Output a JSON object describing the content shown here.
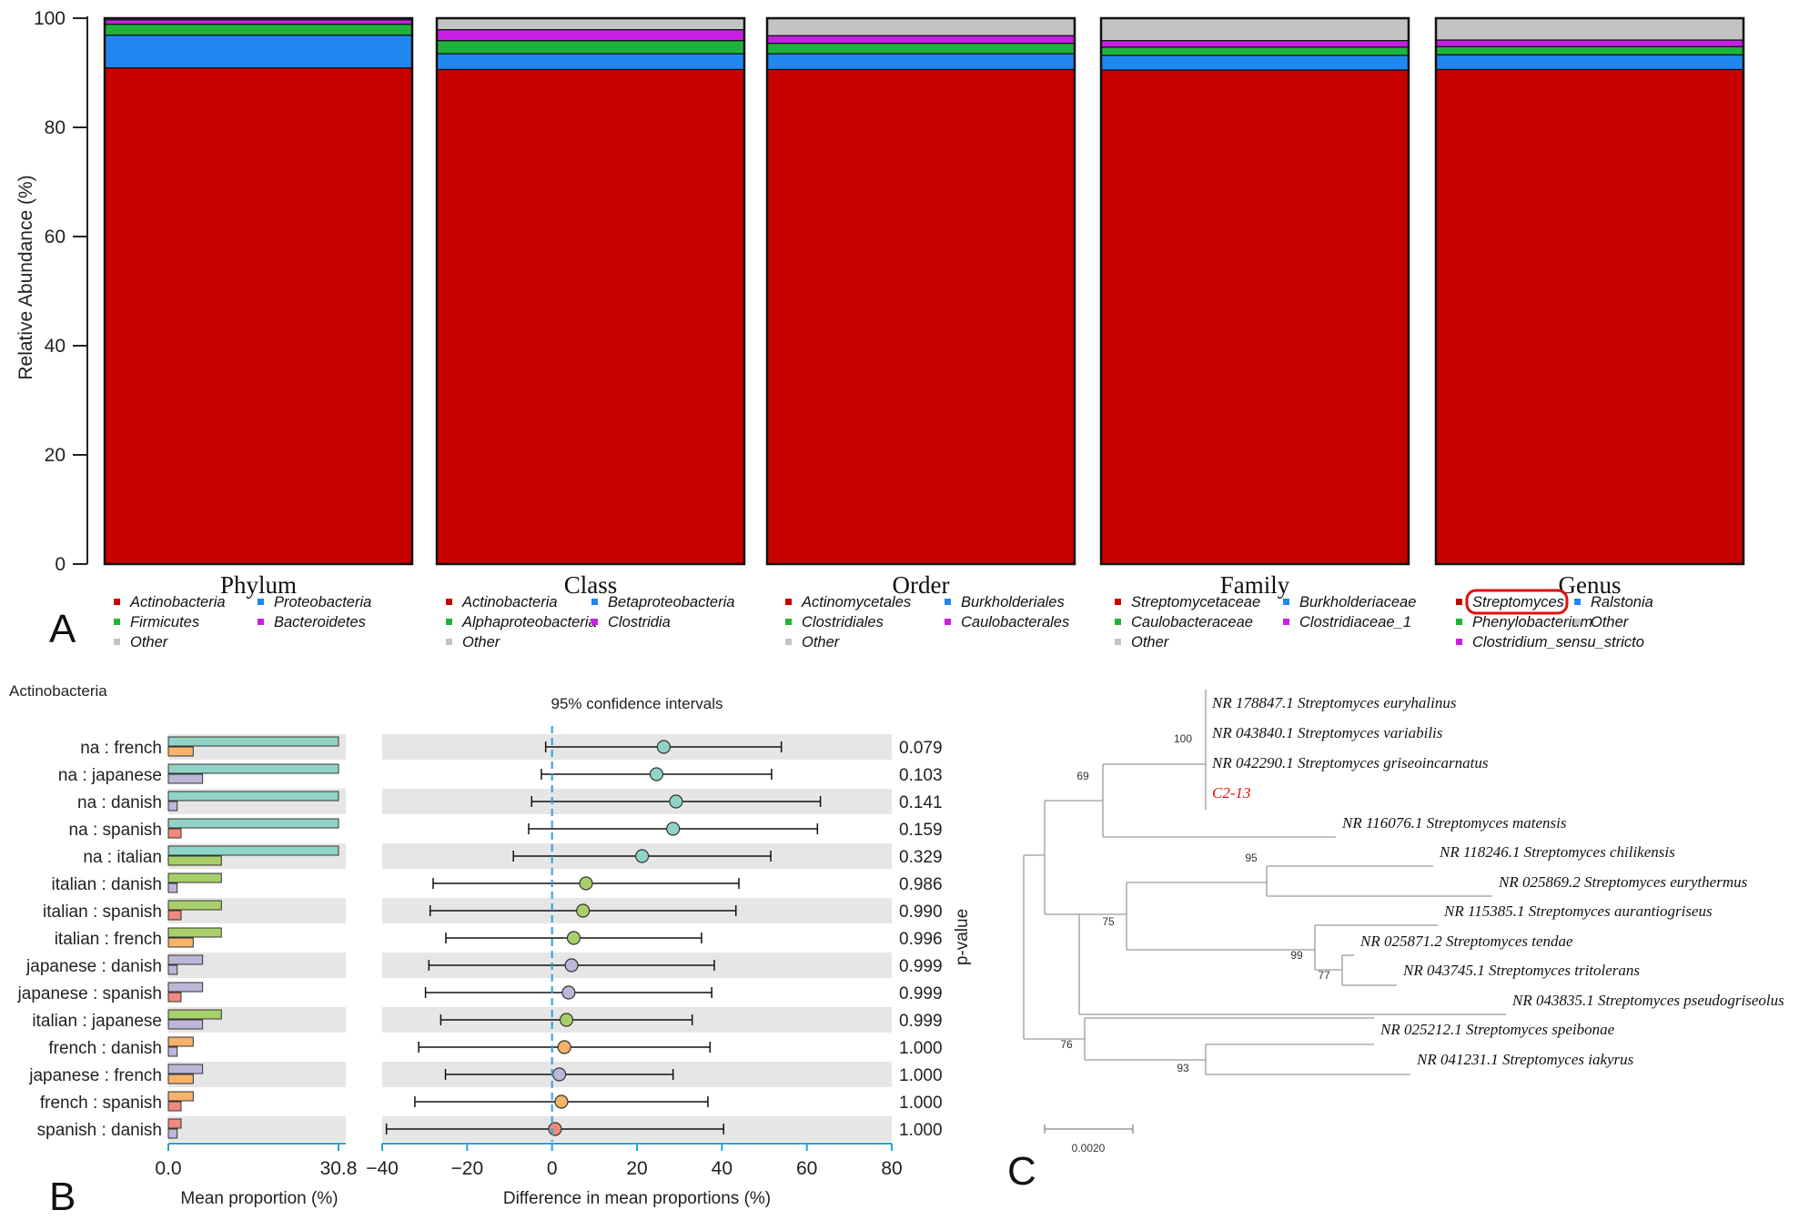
{
  "colors": {
    "red": "#c80000",
    "blue": "#1e88f0",
    "green": "#1eb43c",
    "magenta": "#c81ee6",
    "gray": "#c3c3c3",
    "teal": "#8fd4c6",
    "lime": "#a8d06a",
    "lavender": "#bcb6d8",
    "orange": "#f6b26b",
    "salmon": "#f08a7e",
    "zero_line": "#2aa0d8",
    "axis_blue": "#2aa0d8",
    "highlight": "#e01010"
  },
  "chart_data": [
    {
      "type": "bar",
      "panel": "A",
      "ylabel": "Relative Abundance (%)",
      "ylim": [
        0,
        100
      ],
      "yticks": [
        "0",
        "20",
        "40",
        "60",
        "80",
        "100"
      ],
      "categories": [
        "Phylum",
        "Class",
        "Order",
        "Family",
        "Genus"
      ],
      "stacked": true,
      "bars": [
        {
          "name": "Phylum",
          "segments": [
            {
              "label": "Actinobacteria",
              "value": 90.9,
              "color": "red"
            },
            {
              "label": "Proteobacteria",
              "value": 6.0,
              "color": "blue"
            },
            {
              "label": "Firmicutes",
              "value": 2.0,
              "color": "green"
            },
            {
              "label": "Bacteroidetes",
              "value": 0.8,
              "color": "magenta"
            },
            {
              "label": "Other",
              "value": 0.3,
              "color": "gray"
            }
          ]
        },
        {
          "name": "Class",
          "segments": [
            {
              "label": "Actinobacteria",
              "value": 90.6,
              "color": "red"
            },
            {
              "label": "Betaproteobacteria",
              "value": 2.9,
              "color": "blue"
            },
            {
              "label": "Alphaproteobacteria",
              "value": 2.4,
              "color": "green"
            },
            {
              "label": "Clostridia",
              "value": 2.0,
              "color": "magenta"
            },
            {
              "label": "Other",
              "value": 2.1,
              "color": "gray"
            }
          ]
        },
        {
          "name": "Order",
          "segments": [
            {
              "label": "Actinomycetales",
              "value": 90.6,
              "color": "red"
            },
            {
              "label": "Burkholderiales",
              "value": 2.9,
              "color": "blue"
            },
            {
              "label": "Clostridiales",
              "value": 1.9,
              "color": "green"
            },
            {
              "label": "Caulobacterales",
              "value": 1.4,
              "color": "magenta"
            },
            {
              "label": "Other",
              "value": 3.2,
              "color": "gray"
            }
          ]
        },
        {
          "name": "Family",
          "segments": [
            {
              "label": "Streptomycetaceae",
              "value": 90.5,
              "color": "red"
            },
            {
              "label": "Burkholderiaceae",
              "value": 2.7,
              "color": "blue"
            },
            {
              "label": "Caulobacteraceae",
              "value": 1.5,
              "color": "green"
            },
            {
              "label": "Clostridiaceae_1",
              "value": 1.2,
              "color": "magenta"
            },
            {
              "label": "Other",
              "value": 4.1,
              "color": "gray"
            }
          ]
        },
        {
          "name": "Genus",
          "segments": [
            {
              "label": "Streptomyces",
              "value": 90.6,
              "color": "red"
            },
            {
              "label": "Ralstonia",
              "value": 2.7,
              "color": "blue"
            },
            {
              "label": "Phenylobacterium",
              "value": 1.5,
              "color": "green"
            },
            {
              "label": "Clostridium_sensu_stricto",
              "value": 1.2,
              "color": "magenta"
            },
            {
              "label": "Other",
              "value": 4.0,
              "color": "gray"
            }
          ]
        }
      ],
      "legends": [
        {
          "rank": "Phylum",
          "columns": [
            [
              "Actinobacteria",
              "Firmicutes",
              "Other"
            ],
            [
              "Proteobacteria",
              "Bacteroidetes"
            ]
          ],
          "colors": [
            [
              "red",
              "green",
              "gray"
            ],
            [
              "blue",
              "magenta"
            ]
          ]
        },
        {
          "rank": "Class",
          "columns": [
            [
              "Actinobacteria",
              "Alphaproteobacteria",
              "Other"
            ],
            [
              "Betaproteobacteria",
              "Clostridia"
            ]
          ],
          "colors": [
            [
              "red",
              "green",
              "gray"
            ],
            [
              "blue",
              "magenta"
            ]
          ]
        },
        {
          "rank": "Order",
          "columns": [
            [
              "Actinomycetales",
              "Clostridiales",
              "Other"
            ],
            [
              "Burkholderiales",
              "Caulobacterales"
            ]
          ],
          "colors": [
            [
              "red",
              "green",
              "gray"
            ],
            [
              "blue",
              "magenta"
            ]
          ]
        },
        {
          "rank": "Family",
          "columns": [
            [
              "Streptomycetaceae",
              "Caulobacteraceae",
              "Other"
            ],
            [
              "Burkholderiaceae",
              "Clostridiaceae_1"
            ]
          ],
          "colors": [
            [
              "red",
              "green",
              "gray"
            ],
            [
              "blue",
              "magenta"
            ]
          ]
        },
        {
          "rank": "Genus",
          "columns": [
            [
              "Streptomyces",
              "Phenylobacterium",
              "Clostridium_sensu_stricto"
            ],
            [
              "Ralstonia",
              "Other"
            ]
          ],
          "colors": [
            [
              "red",
              "green",
              "magenta"
            ],
            [
              "blue",
              "gray"
            ]
          ],
          "highlighted": "Streptomyces"
        }
      ]
    },
    {
      "type": "forest",
      "panel": "B",
      "group_title": "Actinobacteria",
      "ci_title": "95% confidence intervals",
      "mean_xlabel": "Mean proportion (%)",
      "mean_xlim": [
        0,
        30.8
      ],
      "mean_xticks": [
        "0.0",
        "30.8"
      ],
      "diff_xlabel": "Difference in mean proportions (%)",
      "diff_xlim": [
        -40,
        80
      ],
      "diff_xticks": [
        "−40",
        "−20",
        "0",
        "20",
        "40",
        "60",
        "80"
      ],
      "pvalue_label": "p-value",
      "groups": {
        "na": "teal",
        "italian": "lime",
        "japanese": "lavender",
        "french": "orange",
        "spanish": "salmon",
        "danish": "lavender"
      },
      "group_means": {
        "na": 30.8,
        "italian": 9.6,
        "japanese": 6.2,
        "french": 4.5,
        "spanish": 2.3,
        "danish": 1.6
      },
      "rows": [
        {
          "label": "na : french",
          "g1": "na",
          "g2": "french",
          "diff": 26.3,
          "lo": -1.5,
          "hi": 54.0,
          "p": "0.079",
          "color": "teal"
        },
        {
          "label": "na : japanese",
          "g1": "na",
          "g2": "japanese",
          "diff": 24.6,
          "lo": -2.5,
          "hi": 51.7,
          "p": "0.103",
          "color": "teal"
        },
        {
          "label": "na : danish",
          "g1": "na",
          "g2": "danish",
          "diff": 29.2,
          "lo": -4.8,
          "hi": 63.2,
          "p": "0.141",
          "color": "teal"
        },
        {
          "label": "na : spanish",
          "g1": "na",
          "g2": "spanish",
          "diff": 28.5,
          "lo": -5.5,
          "hi": 62.5,
          "p": "0.159",
          "color": "teal"
        },
        {
          "label": "na : italian",
          "g1": "na",
          "g2": "italian",
          "diff": 21.2,
          "lo": -9.1,
          "hi": 51.5,
          "p": "0.329",
          "color": "teal"
        },
        {
          "label": "italian : danish",
          "g1": "italian",
          "g2": "danish",
          "diff": 8.0,
          "lo": -28.0,
          "hi": 44.0,
          "p": "0.986",
          "color": "lime"
        },
        {
          "label": "italian : spanish",
          "g1": "italian",
          "g2": "spanish",
          "diff": 7.3,
          "lo": -28.7,
          "hi": 43.3,
          "p": "0.990",
          "color": "lime"
        },
        {
          "label": "italian : french",
          "g1": "italian",
          "g2": "french",
          "diff": 5.1,
          "lo": -25.0,
          "hi": 35.2,
          "p": "0.996",
          "color": "lime"
        },
        {
          "label": "japanese : danish",
          "g1": "japanese",
          "g2": "danish",
          "diff": 4.6,
          "lo": -29.0,
          "hi": 38.2,
          "p": "0.999",
          "color": "lavender"
        },
        {
          "label": "japanese : spanish",
          "g1": "japanese",
          "g2": "spanish",
          "diff": 3.9,
          "lo": -29.8,
          "hi": 37.6,
          "p": "0.999",
          "color": "lavender"
        },
        {
          "label": "italian : japanese",
          "g1": "italian",
          "g2": "japanese",
          "diff": 3.4,
          "lo": -26.2,
          "hi": 33.0,
          "p": "0.999",
          "color": "lime"
        },
        {
          "label": "french : danish",
          "g1": "french",
          "g2": "danish",
          "diff": 2.9,
          "lo": -31.4,
          "hi": 37.2,
          "p": "1.000",
          "color": "orange"
        },
        {
          "label": "japanese : french",
          "g1": "japanese",
          "g2": "french",
          "diff": 1.7,
          "lo": -25.1,
          "hi": 28.5,
          "p": "1.000",
          "color": "lavender"
        },
        {
          "label": "french : spanish",
          "g1": "french",
          "g2": "spanish",
          "diff": 2.2,
          "lo": -32.3,
          "hi": 36.7,
          "p": "1.000",
          "color": "orange"
        },
        {
          "label": "spanish : danish",
          "g1": "spanish",
          "g2": "danish",
          "diff": 0.7,
          "lo": -39.0,
          "hi": 40.4,
          "p": "1.000",
          "color": "salmon"
        }
      ]
    },
    {
      "type": "tree",
      "panel": "C",
      "scale_label": "0.0020",
      "leaves": [
        {
          "label": "NR 178847.1 Streptomyces euryhalinus",
          "highlight": false
        },
        {
          "label": "NR 043840.1 Streptomyces variabilis",
          "highlight": false
        },
        {
          "label": "NR 042290.1 Streptomyces griseoincarnatus",
          "highlight": false
        },
        {
          "label": "C2-13",
          "highlight": true
        },
        {
          "label": "NR 116076.1 Streptomyces matensis",
          "highlight": false
        },
        {
          "label": "NR 118246.1 Streptomyces chilikensis",
          "highlight": false
        },
        {
          "label": "NR 025869.2 Streptomyces eurythermus",
          "highlight": false
        },
        {
          "label": "NR 115385.1 Streptomyces aurantiogriseus",
          "highlight": false
        },
        {
          "label": "NR 025871.2 Streptomyces tendae",
          "highlight": false
        },
        {
          "label": "NR 043745.1 Streptomyces tritolerans",
          "highlight": false
        },
        {
          "label": "NR 043835.1 Streptomyces pseudogriseolus",
          "highlight": false
        },
        {
          "label": "NR 025212.1 Streptomyces speibonae",
          "highlight": false
        },
        {
          "label": "NR 041231.1 Streptomyces iakyrus",
          "highlight": false
        }
      ],
      "bootstrap": [
        "100",
        "69",
        "95",
        "75",
        "99",
        "77",
        "76",
        "93"
      ]
    }
  ],
  "panels": {
    "a": "A",
    "b": "B",
    "c": "C"
  }
}
